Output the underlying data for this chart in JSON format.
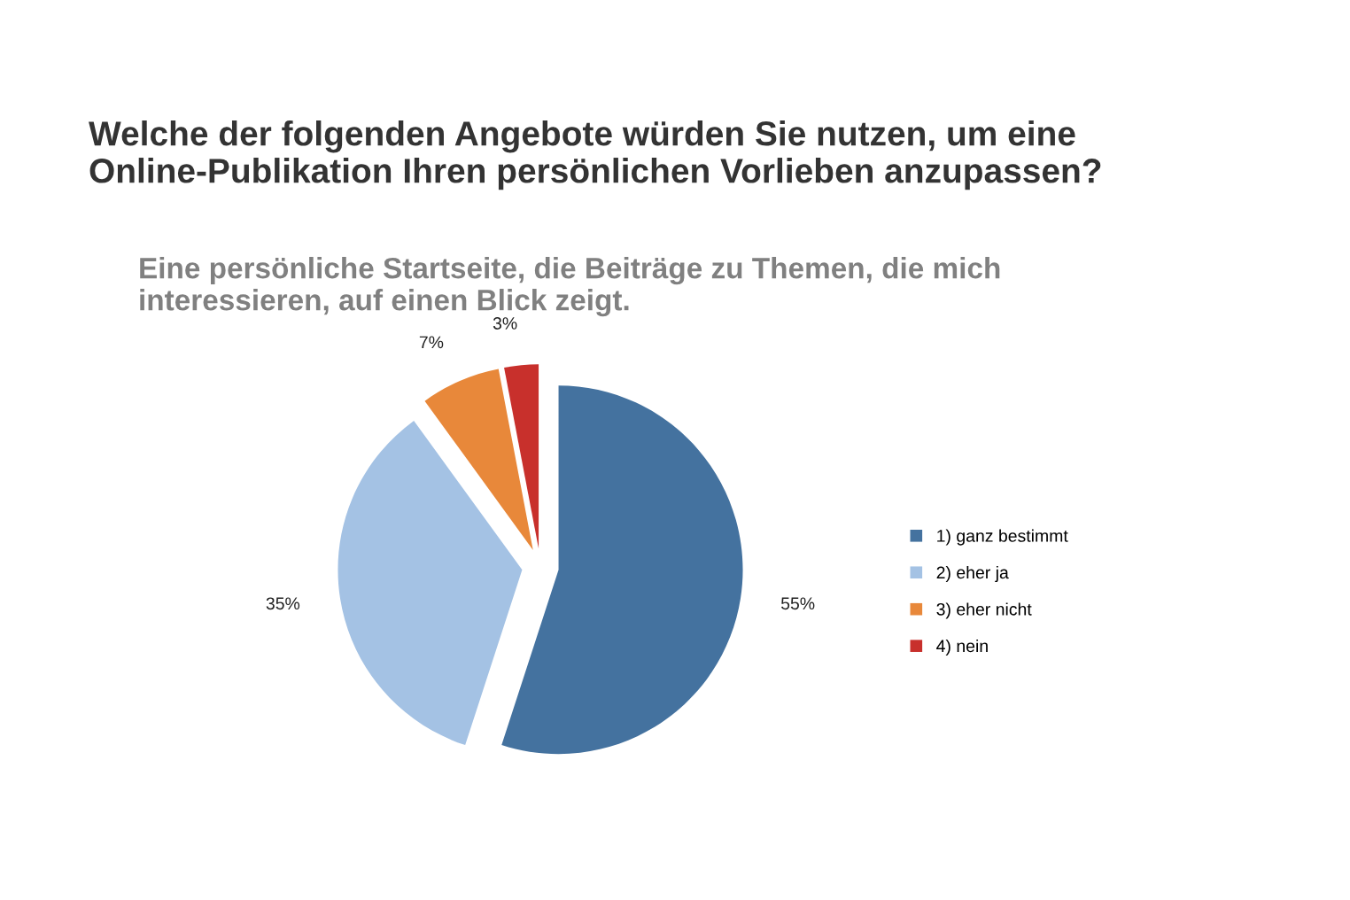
{
  "chart_data": {
    "type": "pie",
    "title": "Welche der folgenden Angebote würden Sie nutzen, um eine\nOnline-Publikation Ihren persönlichen Vorlieben anzupassen?",
    "subtitle": "Eine persönliche Startseite, die Beiträge zu Themen, die mich\ninteressieren, auf einen Blick zeigt.",
    "categories": [
      "1) ganz bestimmt",
      "2) eher ja",
      "3) eher nicht",
      "4) nein"
    ],
    "values": [
      55,
      35,
      7,
      3
    ],
    "value_labels": [
      "55%",
      "35%",
      "7%",
      "3%"
    ],
    "colors": [
      "#44729f",
      "#a4c2e4",
      "#e8883a",
      "#c8302c"
    ],
    "legend": "right"
  }
}
